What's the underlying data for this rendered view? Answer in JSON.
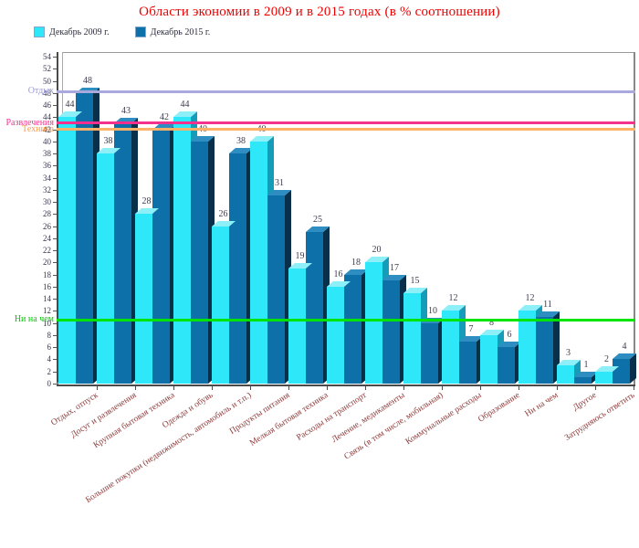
{
  "title": "Области экономии в 2009 и в 2015 годах (в % соотношении)",
  "title_color": "#ee0000",
  "legend": {
    "items": [
      {
        "label": "Декабрь 2009 г.",
        "color": "#2ee8fa"
      },
      {
        "label": "Декабрь 2015 г.",
        "color": "#0d70a8"
      }
    ]
  },
  "chart_data": {
    "type": "bar",
    "title": "Области экономии в 2009 и в 2015 годах (в % соотношении)",
    "categories": [
      "Отдых, отпуск",
      "Досуг и развлечения",
      "Крупная бытовая техника",
      "Одежда и обувь",
      "Большие покупки (недвижимость, автомобиль и т.п.)",
      "Продукты питания",
      "Мелкая бытовая техника",
      "Расходы на транспорт",
      "Лечение, медикаменты",
      "Связь (в том числе, мобильная)",
      "Коммунальные расходы",
      "Образование",
      "Ни на чем",
      "Другое",
      "Затрудняюсь ответить"
    ],
    "series": [
      {
        "name": "Декабрь 2009 г.",
        "values": [
          44,
          38,
          28,
          44,
          26,
          40,
          19,
          16,
          20,
          15,
          12,
          8,
          12,
          3,
          2
        ],
        "color_front": "#2ee8fa",
        "color_top": "#8df0f9",
        "color_side": "#149cb8"
      },
      {
        "name": "Декабрь 2015 г.",
        "values": [
          48,
          43,
          42,
          40,
          38,
          31,
          25,
          18,
          17,
          10,
          7,
          6,
          11,
          1,
          4
        ],
        "color_front": "#0d70a8",
        "color_top": "#2e8ec2",
        "color_side": "#09304a"
      }
    ],
    "ylim": [
      0,
      54
    ],
    "ytick_step": 2,
    "grid": false,
    "legend_position": "top-left",
    "value_labels": true,
    "reference_lines": [
      {
        "label": "Отдых",
        "value": 48.2,
        "color": "#a9a9dd",
        "label_color": "#9a9ad8"
      },
      {
        "label": "Развлечения",
        "value": 43.0,
        "color": "#f5318e",
        "label_color": "#f5318e"
      },
      {
        "label": "Техника",
        "value": 42.0,
        "color": "#ffb267",
        "label_color": "#ff9a4a"
      },
      {
        "label": "Ни на чем",
        "value": 10.5,
        "color": "#00e400",
        "label_color": "#00cc00"
      }
    ]
  }
}
